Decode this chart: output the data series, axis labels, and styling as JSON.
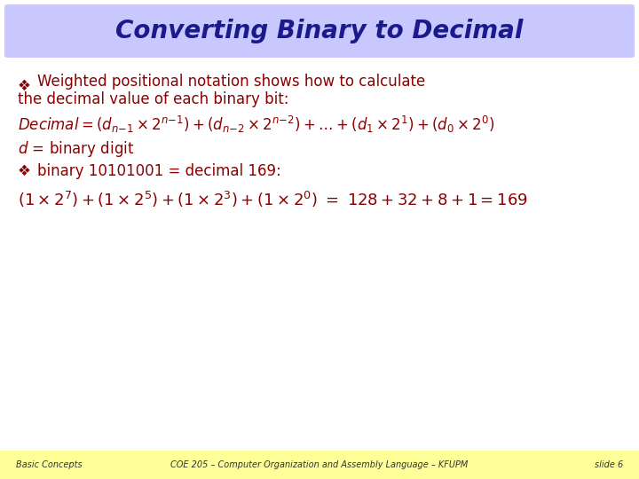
{
  "title": "Converting Binary to Decimal",
  "title_color": "#1a1a8c",
  "title_bg_color": "#c8c8ff",
  "slide_bg_color": "#ffffff",
  "footer_bg_color": "#ffff99",
  "footer_left": "Basic Concepts",
  "footer_center": "COE 205 – Computer Organization and Assembly Language – KFUPM",
  "footer_right": "slide 6",
  "body_text_color": "#8b0000",
  "bullet_text_color": "#8b0000",
  "normal_text_color": "#000000"
}
